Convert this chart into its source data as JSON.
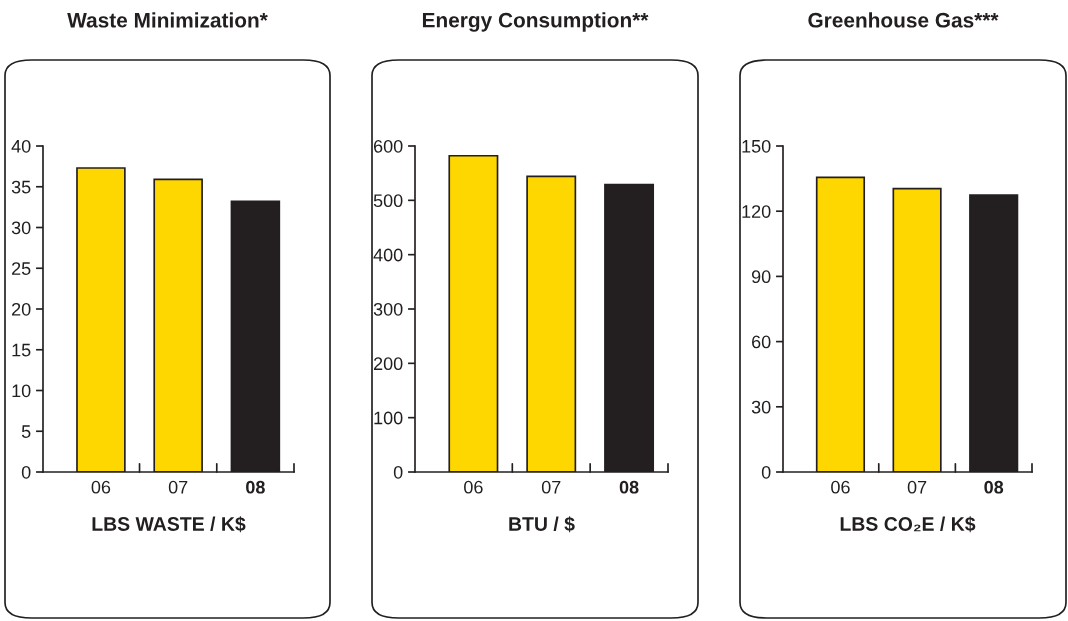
{
  "chart_data": [
    {
      "type": "bar",
      "title": "Waste Minimization*",
      "xlabel": "LBS WASTE / K$",
      "categories": [
        "06",
        "07",
        "08"
      ],
      "values": [
        37.3,
        35.9,
        33.2
      ],
      "colors": [
        "#ffd700",
        "#ffd700",
        "#231f20"
      ],
      "ylim": [
        0,
        40
      ],
      "yticks": [
        0,
        5,
        10,
        15,
        20,
        25,
        30,
        35,
        40
      ],
      "grid": false
    },
    {
      "type": "bar",
      "title": "Energy Consumption**",
      "xlabel": "BTU / $",
      "categories": [
        "06",
        "07",
        "08"
      ],
      "values": [
        582,
        544,
        529
      ],
      "colors": [
        "#ffd700",
        "#ffd700",
        "#231f20"
      ],
      "ylim": [
        0,
        600
      ],
      "yticks": [
        0,
        100,
        200,
        300,
        400,
        500,
        600
      ],
      "grid": false
    },
    {
      "type": "bar",
      "title": "Greenhouse Gas***",
      "xlabel": "LBS CO₂E / K$",
      "categories": [
        "06",
        "07",
        "08"
      ],
      "values": [
        135.6,
        130.4,
        127.4
      ],
      "colors": [
        "#ffd700",
        "#ffd700",
        "#231f20"
      ],
      "ylim": [
        0,
        150
      ],
      "yticks": [
        0,
        30,
        60,
        90,
        120,
        150
      ],
      "grid": false
    }
  ]
}
